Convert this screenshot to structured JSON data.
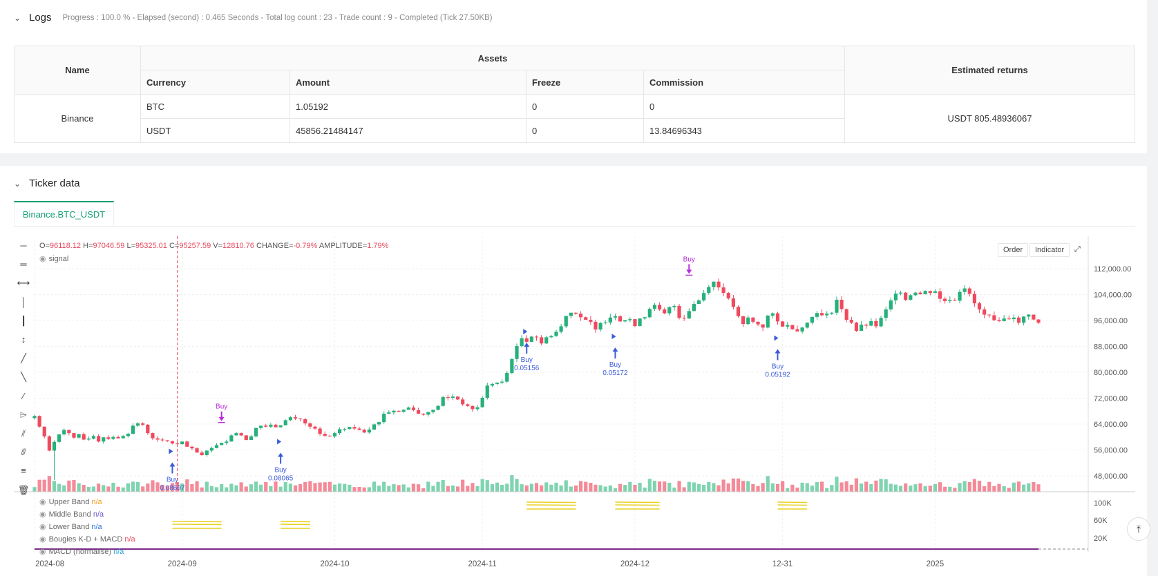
{
  "logs": {
    "title": "Logs",
    "summary": "Progress : 100.0 % - Elapsed (second) : 0.465  Seconds - Total log count : 23 - Trade count : 9 - Completed (Tick 27.50KB)",
    "table": {
      "name_header": "Name",
      "assets_header": "Assets",
      "returns_header": "Estimated returns",
      "columns": [
        "Currency",
        "Amount",
        "Freeze",
        "Commission"
      ],
      "exchange": "Binance",
      "rows": [
        [
          "BTC",
          "1.05192",
          "0",
          "0"
        ],
        [
          "USDT",
          "45856.21484147",
          "0",
          "13.84696343"
        ]
      ],
      "estimated_returns": "USDT 805.48936067"
    }
  },
  "ticker": {
    "title": "Ticker data",
    "tab": "Binance.BTC_USDT"
  },
  "chart_header": {
    "o_label": "O=",
    "o": "96118.12",
    "h_label": "H=",
    "h": "97046.59",
    "l_label": "L=",
    "l": "95325.01",
    "c_label": "C=",
    "c": "95257.59",
    "v_label": "V=",
    "v": "12810.76",
    "change_label": "CHANGE=",
    "change": "-0.79%",
    "amp_label": "AMPLITUDE=",
    "amp": "1.79%",
    "signal": "signal",
    "order_btn": "Order",
    "indicator_btn": "Indicator"
  },
  "legend": [
    {
      "name": "Upper Band",
      "value": "n/a",
      "color": "#f0a020"
    },
    {
      "name": "Middle Band",
      "value": "n/a",
      "color": "#6a5acd"
    },
    {
      "name": "Lower Band",
      "value": "n/a",
      "color": "#3070e0"
    },
    {
      "name": "Bougies K-D + MACD",
      "value": "n/a",
      "color": "#e84a5f"
    },
    {
      "name": "MACD (normalisé)",
      "value": "n/a",
      "color": "#2aa8d8"
    }
  ],
  "tools": [
    "line-tool-icon",
    "hline-tool-icon",
    "ray-tool-icon",
    "vline-tool-icon",
    "vray-tool-icon",
    "vsegment-tool-icon",
    "trend-tool-icon",
    "trend2-tool-icon",
    "trend3-tool-icon",
    "price-label-tool-icon",
    "channel-tool-icon",
    "channel2-tool-icon",
    "fib-tool-icon",
    "trash-icon"
  ],
  "chart_data": {
    "type": "candlestick",
    "y_ticks": [
      "112,000.00",
      "104,000.00",
      "96,000.00",
      "88,000.00",
      "80,000.00",
      "72,000.00",
      "64,000.00",
      "56,000.00",
      "48,000.00"
    ],
    "y_tick_values": [
      112000,
      104000,
      96000,
      88000,
      80000,
      72000,
      64000,
      56000,
      48000
    ],
    "ylim": [
      45000,
      115500
    ],
    "x_ticks": [
      "2024-08",
      "2024-09",
      "2024-10",
      "2024-11",
      "2024-12",
      "12-31",
      "2025"
    ],
    "x_tick_index": [
      0,
      30,
      61,
      91,
      122,
      152,
      183
    ],
    "sub_y_ticks": [
      "100K",
      "60K",
      "20K"
    ],
    "closes": [
      66500,
      63200,
      60200,
      55800,
      58500,
      60800,
      62200,
      61200,
      59800,
      60900,
      59200,
      59500,
      60300,
      58600,
      59900,
      59400,
      60000,
      59600,
      60300,
      61000,
      63500,
      64200,
      63800,
      61200,
      59600,
      59200,
      59000,
      58700,
      58000,
      57800,
      58600,
      57000,
      56500,
      55200,
      54400,
      55800,
      56600,
      57500,
      58200,
      58600,
      60500,
      61200,
      60500,
      59100,
      60200,
      62800,
      63500,
      63200,
      63800,
      63000,
      63600,
      65200,
      66100,
      65700,
      65500,
      64200,
      63200,
      62600,
      61000,
      60400,
      60200,
      61200,
      62400,
      62500,
      63100,
      62600,
      62200,
      61400,
      62300,
      63900,
      64600,
      67200,
      67600,
      68100,
      67800,
      68400,
      69100,
      68300,
      67200,
      66900,
      67700,
      68400,
      69600,
      72300,
      72100,
      72500,
      71600,
      70100,
      69600,
      68600,
      69200,
      72100,
      75900,
      76400,
      76800,
      77100,
      79800,
      84100,
      88100,
      90500,
      89400,
      91000,
      90800,
      88900,
      90800,
      91200,
      92500,
      94200,
      97400,
      98400,
      98100,
      97000,
      96200,
      95600,
      93200,
      95200,
      95400,
      96900,
      97300,
      95700,
      96100,
      96400,
      94300,
      96600,
      97000,
      99600,
      100800,
      99400,
      98200,
      100100,
      100500,
      96800,
      96600,
      98900,
      101100,
      102200,
      104500,
      106300,
      108000,
      106200,
      104500,
      102800,
      100200,
      97300,
      94900,
      96900,
      95600,
      94800,
      93800,
      97500,
      98200,
      95700,
      94100,
      94600,
      93300,
      92600,
      93800,
      95300,
      97100,
      98300,
      97600,
      98100,
      98400,
      102400,
      99500,
      96200,
      95300,
      92800,
      94700,
      94400,
      95800,
      94200,
      96800,
      99400,
      102200,
      104300,
      104600,
      102400,
      103800,
      104600,
      104100,
      105100,
      104500,
      105000,
      102700,
      102000,
      102300,
      102100,
      104800,
      105900,
      104200,
      101300,
      99400,
      97800,
      97600,
      96100,
      95800,
      96600,
      96400,
      96900,
      95300,
      97200,
      97800,
      96300,
      95300
    ],
    "markers": [
      {
        "index": 28,
        "type": "buy",
        "label": "Buy",
        "value": "0.08697",
        "price": 56000
      },
      {
        "index": 38,
        "type": "sell",
        "label": "Buy",
        "price": 61500
      },
      {
        "index": 50,
        "type": "buy",
        "label": "Buy",
        "value": "0.08065",
        "price": 59000
      },
      {
        "index": 100,
        "type": "buy",
        "label": "Buy",
        "value": "0.05156",
        "price": 93000
      },
      {
        "index": 118,
        "type": "buy",
        "label": "Buy",
        "value": "0.05172",
        "price": 91500
      },
      {
        "index": 133,
        "type": "sell",
        "label": "Buy",
        "price": 107000
      },
      {
        "index": 151,
        "type": "buy",
        "label": "Buy",
        "value": "0.05192",
        "price": 91000
      }
    ],
    "bands": [
      [
        28,
        38
      ],
      [
        50,
        56
      ],
      [
        100,
        110
      ],
      [
        118,
        127
      ],
      [
        151,
        157
      ]
    ]
  }
}
